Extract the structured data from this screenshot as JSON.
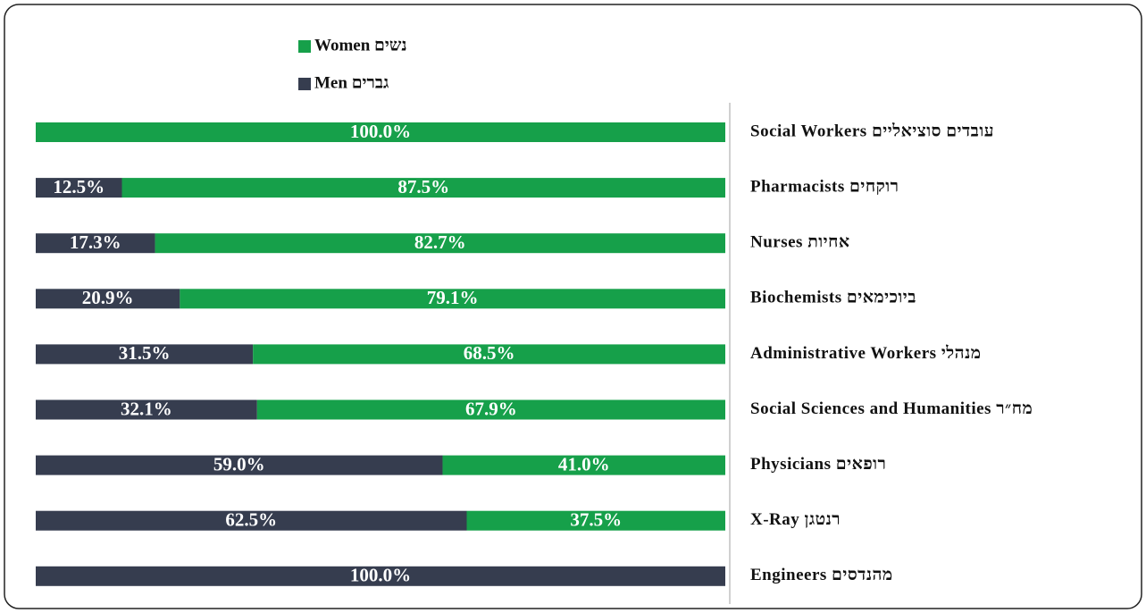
{
  "chart_data": {
    "type": "stacked-barh",
    "categories": [
      "Social Workers עובדים סוציאליים",
      "Pharmacists רוקחים",
      "Nurses אחיות",
      "Biochemists ביוכימאים",
      "Administrative Workers מנהלי",
      "Social Sciences and Humanities מח״ר",
      "Physicians רופאים",
      "X-Ray רנטגן",
      "Engineers מהנדסים"
    ],
    "series": [
      {
        "name": "Men גברים",
        "color": "#363d4f",
        "values": [
          0,
          12.5,
          17.3,
          20.9,
          31.5,
          32.1,
          59.0,
          62.5,
          100
        ],
        "value_labels": [
          null,
          "12.5%",
          "17.3%",
          "20.9%",
          "31.5%",
          "32.1%",
          "59.0%",
          "62.5%",
          "100.0%"
        ]
      },
      {
        "name": "Women נשים",
        "color": "#16a04a",
        "values": [
          100,
          87.5,
          82.7,
          79.1,
          68.5,
          67.9,
          41.0,
          37.5,
          0
        ],
        "value_labels": [
          "100.0%",
          "87.5%",
          "82.7%",
          "79.1%",
          "68.5%",
          "67.9%",
          "41.0%",
          "37.5%",
          null
        ]
      }
    ],
    "xlim": [
      0,
      100
    ]
  }
}
